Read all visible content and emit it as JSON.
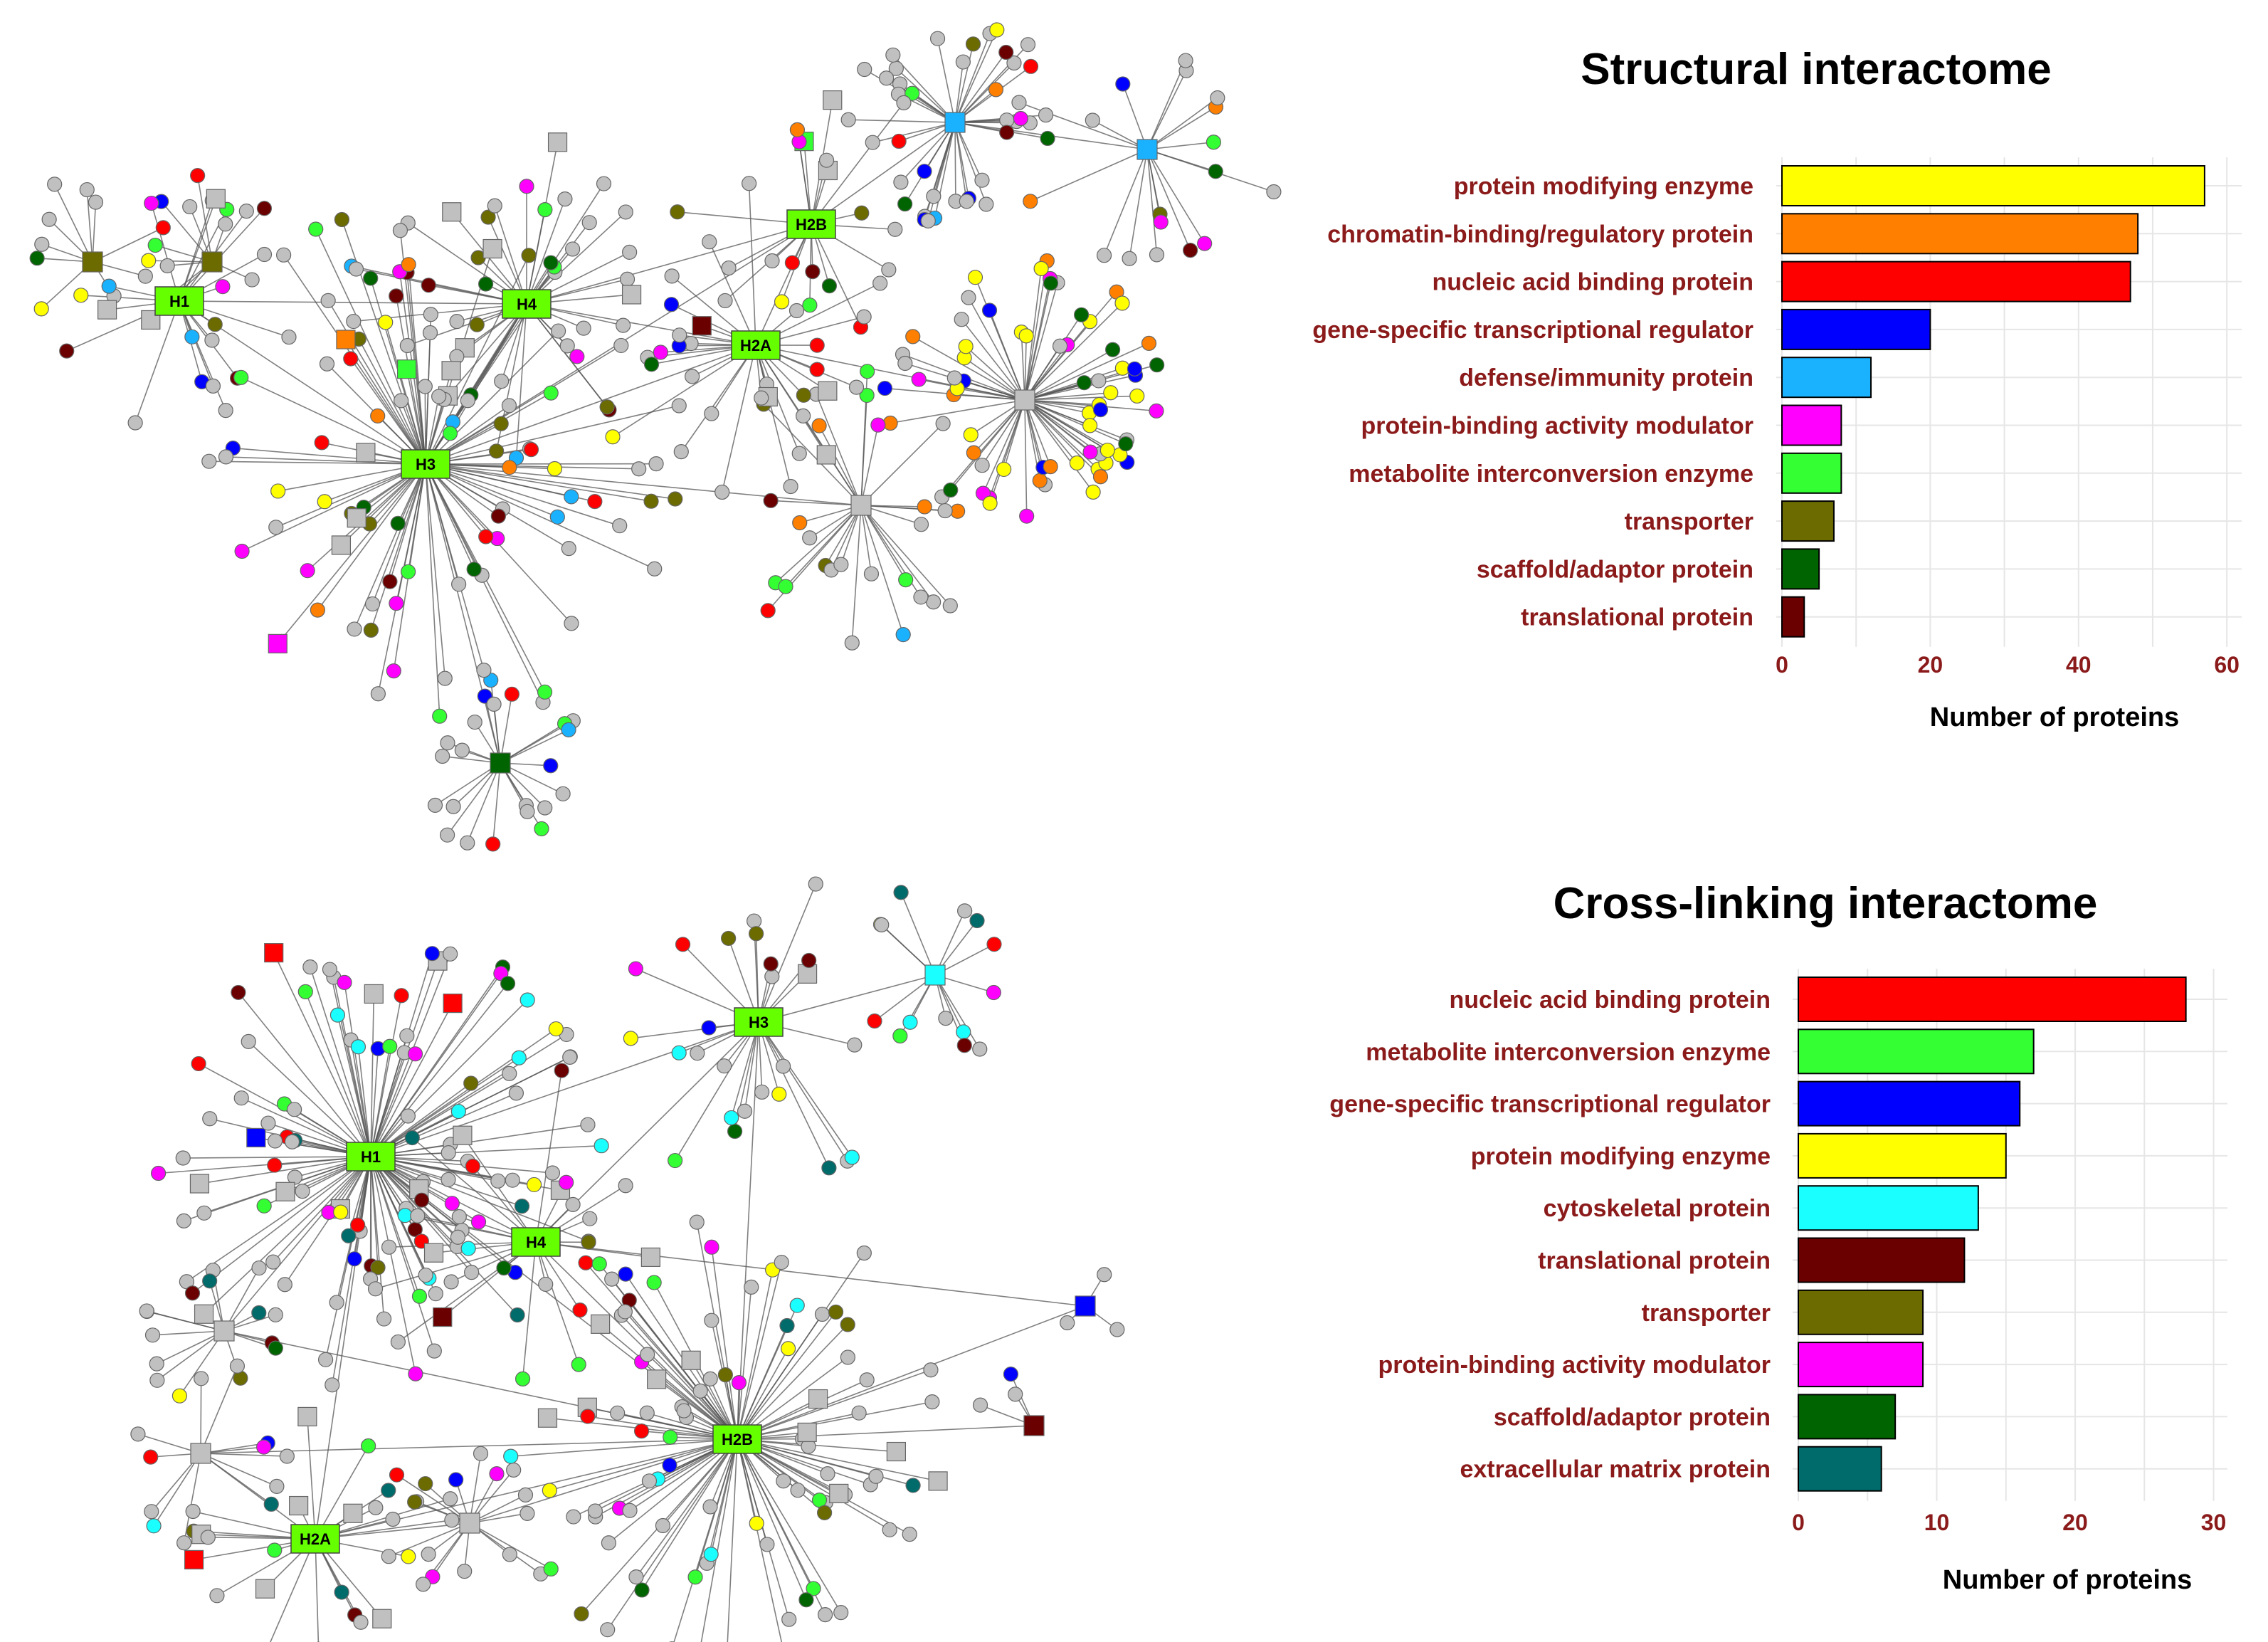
{
  "chart_data": [
    {
      "type": "bar",
      "orientation": "horizontal",
      "title": "Structural interactome",
      "xlabel": "Number of proteins",
      "xlim": [
        0,
        62
      ],
      "xticks": [
        0,
        20,
        40,
        60
      ],
      "grid": true,
      "categories": [
        "protein modifying enzyme",
        "chromatin-binding/regulatory protein",
        "nucleic acid binding protein",
        "gene-specific transcriptional regulator",
        "defense/immunity protein",
        "protein-binding activity modulator",
        "metabolite interconversion enzyme",
        "transporter",
        "scaffold/adaptor protein",
        "translational protein"
      ],
      "values": [
        57,
        48,
        47,
        20,
        12,
        8,
        8,
        7,
        5,
        3
      ],
      "colors": [
        "#FFFF00",
        "#FF7F00",
        "#FF0000",
        "#0000FF",
        "#1AB2FF",
        "#FF00FF",
        "#33FF33",
        "#6B6B00",
        "#006400",
        "#6B0000"
      ]
    },
    {
      "type": "bar",
      "orientation": "horizontal",
      "title": "Cross-linking interactome",
      "xlabel": "Number of proteins",
      "xlim": [
        0,
        31
      ],
      "xticks": [
        0,
        10,
        20,
        30
      ],
      "grid": true,
      "categories": [
        "nucleic acid binding protein",
        "metabolite interconversion enzyme",
        "gene-specific transcriptional regulator",
        "protein modifying enzyme",
        "cytoskeletal protein",
        "translational protein",
        "transporter",
        "protein-binding activity modulator",
        "scaffold/adaptor protein",
        "extracellular matrix protein"
      ],
      "values": [
        28,
        17,
        16,
        15,
        13,
        12,
        9,
        9,
        7,
        6
      ],
      "colors": [
        "#FF0000",
        "#33FF33",
        "#0000FF",
        "#FFFF00",
        "#1AFFFF",
        "#6B0000",
        "#6B6B00",
        "#FF00FF",
        "#006400",
        "#006B6B"
      ]
    }
  ],
  "networks": [
    {
      "hubs": [
        "H1",
        "H2B",
        "H4",
        "H2A",
        "H3"
      ],
      "category_colors": [
        "#FFFF00",
        "#FF7F00",
        "#FF0000",
        "#0000FF",
        "#1AB2FF",
        "#FF00FF",
        "#33FF33",
        "#6B6B00",
        "#006400",
        "#6B0000"
      ],
      "node_color_default": "#C0C0C0",
      "hub_color": "#66FF00"
    },
    {
      "hubs": [
        "H3",
        "H1",
        "H4",
        "H2B",
        "H2A"
      ],
      "category_colors": [
        "#FF0000",
        "#33FF33",
        "#0000FF",
        "#FFFF00",
        "#1AFFFF",
        "#6B0000",
        "#6B6B00",
        "#FF00FF",
        "#006400",
        "#006B6B"
      ],
      "node_color_default": "#C0C0C0",
      "hub_color": "#66FF00"
    }
  ]
}
